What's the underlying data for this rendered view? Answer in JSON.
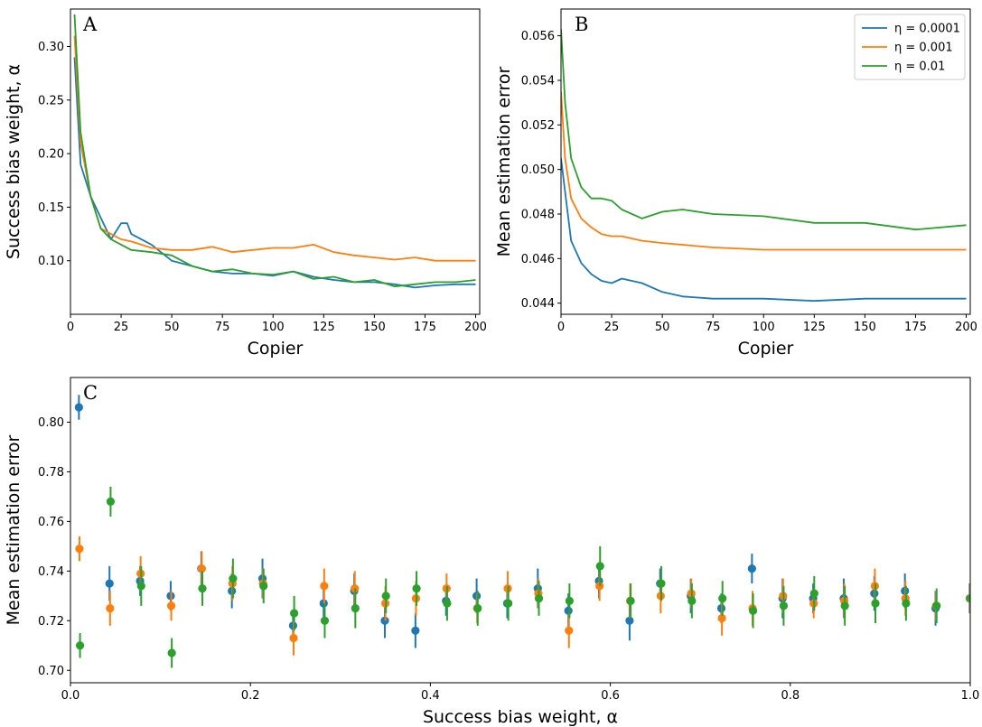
{
  "colors": {
    "s1": "#1f77b4",
    "s2": "#ff7f0e",
    "s3": "#2ca02c"
  },
  "chart_data": [
    {
      "panel": "A",
      "type": "line",
      "xlabel": "Copier",
      "ylabel": "Success bias weight, α",
      "xlim": [
        0,
        202
      ],
      "ylim": [
        0.05,
        0.335
      ],
      "xticks": [
        0,
        25,
        50,
        75,
        100,
        125,
        150,
        175,
        200
      ],
      "yticks": [
        0.1,
        0.15,
        0.2,
        0.25,
        0.3
      ],
      "ytick_decimals": 2,
      "grid": false,
      "series": [
        {
          "name": "η = 0.0001",
          "color": "#1f77b4",
          "x": [
            2,
            5,
            10,
            15,
            20,
            25,
            28,
            30,
            40,
            50,
            60,
            70,
            80,
            90,
            100,
            110,
            120,
            130,
            140,
            150,
            160,
            170,
            180,
            190,
            200
          ],
          "y": [
            0.29,
            0.19,
            0.16,
            0.14,
            0.12,
            0.135,
            0.135,
            0.125,
            0.115,
            0.1,
            0.095,
            0.09,
            0.088,
            0.088,
            0.086,
            0.09,
            0.085,
            0.082,
            0.08,
            0.08,
            0.078,
            0.075,
            0.077,
            0.078,
            0.078
          ]
        },
        {
          "name": "η = 0.001",
          "color": "#ff7f0e",
          "x": [
            2,
            5,
            10,
            15,
            20,
            25,
            30,
            40,
            50,
            60,
            70,
            80,
            90,
            100,
            110,
            120,
            130,
            140,
            150,
            160,
            170,
            180,
            190,
            200
          ],
          "y": [
            0.31,
            0.21,
            0.16,
            0.13,
            0.125,
            0.12,
            0.118,
            0.112,
            0.11,
            0.11,
            0.113,
            0.108,
            0.11,
            0.112,
            0.112,
            0.115,
            0.108,
            0.105,
            0.103,
            0.101,
            0.103,
            0.1,
            0.1,
            0.1
          ]
        },
        {
          "name": "η = 0.01",
          "color": "#2ca02c",
          "x": [
            2,
            5,
            10,
            15,
            20,
            25,
            30,
            40,
            50,
            60,
            70,
            80,
            90,
            100,
            110,
            120,
            130,
            140,
            150,
            160,
            170,
            180,
            190,
            200
          ],
          "y": [
            0.33,
            0.22,
            0.16,
            0.13,
            0.12,
            0.115,
            0.11,
            0.108,
            0.105,
            0.095,
            0.09,
            0.092,
            0.088,
            0.087,
            0.09,
            0.083,
            0.085,
            0.08,
            0.082,
            0.076,
            0.078,
            0.08,
            0.08,
            0.082
          ]
        }
      ]
    },
    {
      "panel": "B",
      "type": "line",
      "xlabel": "Copier",
      "ylabel": "Mean estimation error",
      "xlim": [
        0,
        202
      ],
      "ylim": [
        0.0435,
        0.0572
      ],
      "xticks": [
        0,
        25,
        50,
        75,
        100,
        125,
        150,
        175,
        200
      ],
      "yticks": [
        0.044,
        0.046,
        0.048,
        0.05,
        0.052,
        0.054,
        0.056
      ],
      "ytick_decimals": 3,
      "grid": false,
      "legend": "top-right",
      "series": [
        {
          "name": "η = 0.0001",
          "color": "#1f77b4",
          "x": [
            0,
            2,
            5,
            10,
            15,
            20,
            25,
            30,
            40,
            50,
            60,
            75,
            100,
            125,
            150,
            175,
            200
          ],
          "y": [
            0.0505,
            0.049,
            0.0468,
            0.0458,
            0.0453,
            0.045,
            0.0449,
            0.0451,
            0.0449,
            0.0445,
            0.0443,
            0.0442,
            0.0442,
            0.0441,
            0.0442,
            0.0442,
            0.0442
          ]
        },
        {
          "name": "η = 0.001",
          "color": "#ff7f0e",
          "x": [
            0,
            2,
            5,
            10,
            15,
            20,
            25,
            30,
            40,
            50,
            75,
            100,
            125,
            150,
            175,
            200
          ],
          "y": [
            0.0535,
            0.0505,
            0.0487,
            0.0478,
            0.0474,
            0.0471,
            0.047,
            0.047,
            0.0468,
            0.0467,
            0.0465,
            0.0464,
            0.0464,
            0.0464,
            0.0464,
            0.0464
          ]
        },
        {
          "name": "η = 0.01",
          "color": "#2ca02c",
          "x": [
            0,
            2,
            5,
            10,
            15,
            20,
            25,
            30,
            40,
            50,
            60,
            75,
            100,
            125,
            150,
            175,
            200
          ],
          "y": [
            0.0563,
            0.053,
            0.0505,
            0.0492,
            0.0487,
            0.0487,
            0.0486,
            0.0482,
            0.0478,
            0.0481,
            0.0482,
            0.048,
            0.0479,
            0.0476,
            0.0476,
            0.0473,
            0.0475
          ]
        }
      ]
    },
    {
      "panel": "C",
      "type": "scatter",
      "xlabel": "Success bias weight, α",
      "ylabel": "Mean estimation error",
      "xlim": [
        0.0,
        1.0
      ],
      "ylim": [
        0.695,
        0.818
      ],
      "xticks": [
        0.0,
        0.2,
        0.4,
        0.6,
        0.8,
        1.0
      ],
      "yticks": [
        0.7,
        0.72,
        0.74,
        0.76,
        0.78,
        0.8
      ],
      "xtick_decimals": 1,
      "ytick_decimals": 2,
      "grid": false,
      "x": [
        0.01,
        0.044,
        0.078,
        0.112,
        0.146,
        0.18,
        0.214,
        0.248,
        0.282,
        0.316,
        0.35,
        0.384,
        0.418,
        0.452,
        0.486,
        0.52,
        0.554,
        0.588,
        0.622,
        0.656,
        0.69,
        0.724,
        0.758,
        0.792,
        0.826,
        0.86,
        0.894,
        0.928,
        0.962,
        1.0
      ],
      "series": [
        {
          "name": "η = 0.0001",
          "color": "#1f77b4",
          "y": [
            0.806,
            0.735,
            0.736,
            0.73,
            0.741,
            0.732,
            0.737,
            0.718,
            0.727,
            0.732,
            0.72,
            0.716,
            0.728,
            0.73,
            0.727,
            0.733,
            0.724,
            0.736,
            0.72,
            0.735,
            0.73,
            0.725,
            0.741,
            0.729,
            0.729,
            0.729,
            0.731,
            0.732,
            0.725,
            0.729
          ],
          "err": [
            0.005,
            0.007,
            0.006,
            0.006,
            0.007,
            0.007,
            0.008,
            0.006,
            0.007,
            0.007,
            0.007,
            0.007,
            0.006,
            0.007,
            0.006,
            0.008,
            0.007,
            0.007,
            0.008,
            0.006,
            0.007,
            0.006,
            0.006,
            0.008,
            0.006,
            0.008,
            0.007,
            0.007,
            0.007,
            0.006
          ]
        },
        {
          "name": "η = 0.001",
          "color": "#ff7f0e",
          "y": [
            0.749,
            0.725,
            0.739,
            0.726,
            0.741,
            0.735,
            0.735,
            0.713,
            0.734,
            0.733,
            0.727,
            0.729,
            0.733,
            0.725,
            0.733,
            0.731,
            0.716,
            0.734,
            0.728,
            0.73,
            0.731,
            0.721,
            0.725,
            0.73,
            0.727,
            0.728,
            0.734,
            0.729,
            0.726,
            0.729
          ],
          "err": [
            0.005,
            0.007,
            0.007,
            0.006,
            0.007,
            0.007,
            0.006,
            0.007,
            0.007,
            0.007,
            0.007,
            0.007,
            0.006,
            0.006,
            0.007,
            0.006,
            0.007,
            0.006,
            0.007,
            0.007,
            0.006,
            0.007,
            0.007,
            0.007,
            0.006,
            0.007,
            0.007,
            0.007,
            0.006,
            0.006
          ]
        },
        {
          "name": "η = 0.01",
          "color": "#2ca02c",
          "y": [
            0.71,
            0.768,
            0.734,
            0.707,
            0.733,
            0.737,
            0.734,
            0.723,
            0.72,
            0.725,
            0.73,
            0.733,
            0.727,
            0.725,
            0.727,
            0.729,
            0.728,
            0.742,
            0.728,
            0.735,
            0.728,
            0.729,
            0.724,
            0.726,
            0.731,
            0.726,
            0.727,
            0.727,
            0.726,
            0.729
          ],
          "err": [
            0.005,
            0.006,
            0.008,
            0.006,
            0.007,
            0.008,
            0.007,
            0.007,
            0.007,
            0.008,
            0.007,
            0.007,
            0.007,
            0.007,
            0.007,
            0.007,
            0.007,
            0.008,
            0.007,
            0.007,
            0.007,
            0.007,
            0.007,
            0.008,
            0.007,
            0.008,
            0.008,
            0.007,
            0.007,
            0.007
          ]
        }
      ]
    }
  ]
}
